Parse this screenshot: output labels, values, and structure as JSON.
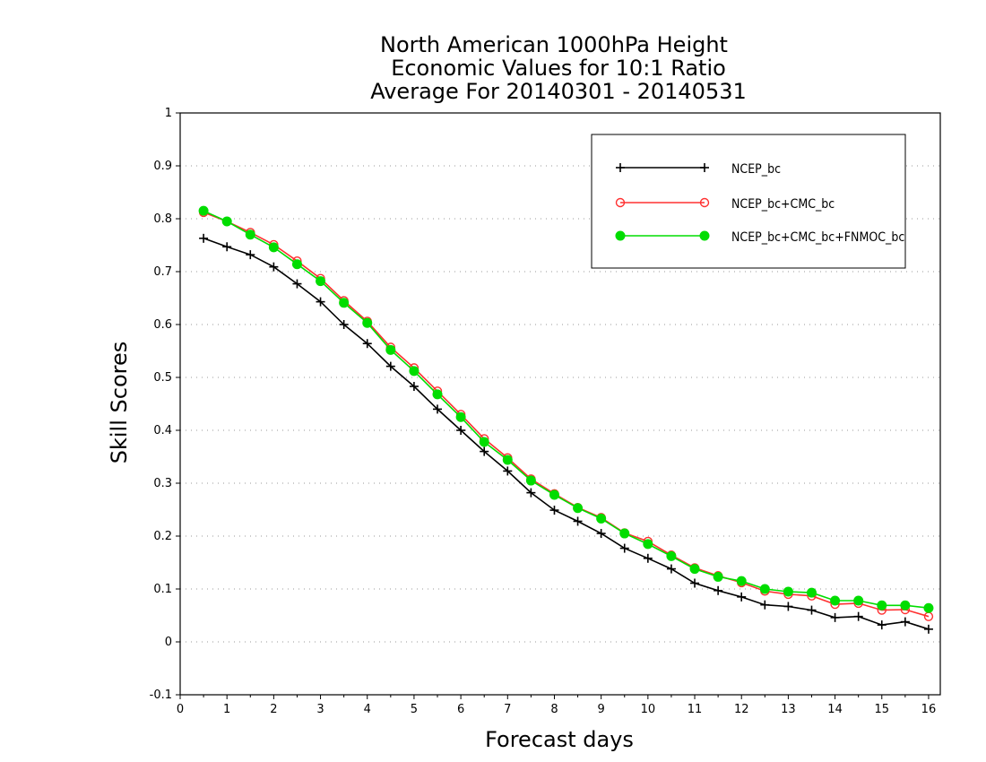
{
  "chart_data": {
    "type": "line",
    "title": [
      "North American 1000hPa Height",
      "Economic Values for 10:1 Ratio",
      "Average For 20140301 - 20140531"
    ],
    "xlabel": "Forecast days",
    "ylabel": "Skill Scores",
    "xlim": [
      0,
      16.25
    ],
    "ylim": [
      -0.1,
      1.0
    ],
    "xticks": [
      0,
      1,
      2,
      3,
      4,
      5,
      6,
      7,
      8,
      9,
      10,
      11,
      12,
      13,
      14,
      15,
      16
    ],
    "yticks": [
      -0.1,
      0,
      0.1,
      0.2,
      0.3,
      0.4,
      0.5,
      0.6,
      0.7,
      0.8,
      0.9,
      1
    ],
    "ytick_labels": [
      "-0.1",
      "0",
      "0.1",
      "0.2",
      "0.3",
      "0.4",
      "0.5",
      "0.6",
      "0.7",
      "0.8",
      "0.9",
      "1"
    ],
    "grid": true,
    "legend_position": "top-right",
    "x": [
      0.5,
      1,
      1.5,
      2,
      2.5,
      3,
      3.5,
      4,
      4.5,
      5,
      5.5,
      6,
      6.5,
      7,
      7.5,
      8,
      8.5,
      9,
      9.5,
      10,
      10.5,
      11,
      11.5,
      12,
      12.5,
      13,
      13.5,
      14,
      14.5,
      15,
      15.5,
      16
    ],
    "series": [
      {
        "name": "NCEP_bc",
        "color": "#000000",
        "marker": "plus",
        "values": [
          0.763,
          0.747,
          0.732,
          0.709,
          0.677,
          0.643,
          0.6,
          0.564,
          0.521,
          0.483,
          0.44,
          0.4,
          0.36,
          0.323,
          0.282,
          0.249,
          0.228,
          0.205,
          0.177,
          0.158,
          0.138,
          0.111,
          0.097,
          0.085,
          0.07,
          0.067,
          0.06,
          0.046,
          0.048,
          0.032,
          0.038,
          0.024
        ]
      },
      {
        "name": "NCEP_bc+CMC_bc",
        "color": "#ff3030",
        "marker": "open-circle",
        "values": [
          0.812,
          0.795,
          0.774,
          0.751,
          0.72,
          0.687,
          0.645,
          0.606,
          0.557,
          0.518,
          0.474,
          0.43,
          0.384,
          0.348,
          0.308,
          0.28,
          0.254,
          0.235,
          0.206,
          0.19,
          0.164,
          0.14,
          0.125,
          0.112,
          0.096,
          0.09,
          0.087,
          0.071,
          0.073,
          0.06,
          0.061,
          0.048
        ]
      },
      {
        "name": "NCEP_bc+CMC_bc+FNMOC_bc",
        "color": "#00dd00",
        "marker": "filled-circle",
        "values": [
          0.815,
          0.795,
          0.77,
          0.746,
          0.714,
          0.682,
          0.641,
          0.603,
          0.552,
          0.512,
          0.468,
          0.425,
          0.378,
          0.344,
          0.305,
          0.278,
          0.253,
          0.233,
          0.205,
          0.185,
          0.162,
          0.138,
          0.123,
          0.115,
          0.1,
          0.095,
          0.093,
          0.078,
          0.078,
          0.069,
          0.069,
          0.064
        ]
      }
    ]
  }
}
